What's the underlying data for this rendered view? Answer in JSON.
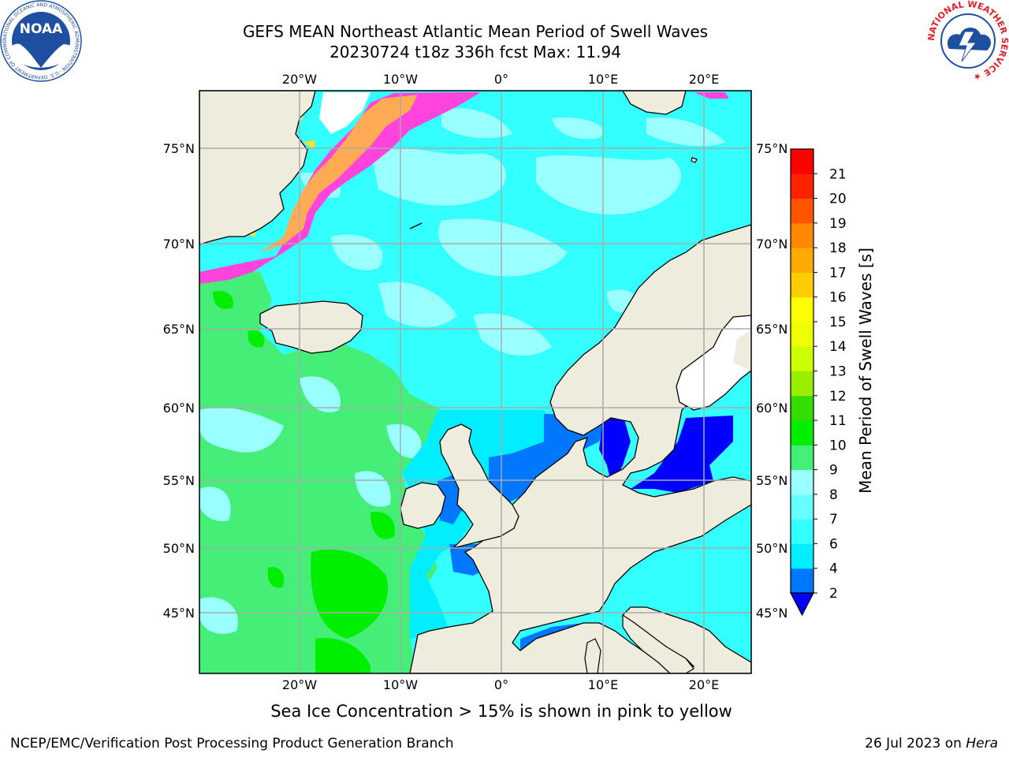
{
  "header": {
    "title_line1": "GEFS MEAN Northeast Atlantic Mean Period of Swell Waves",
    "title_line2": "20230724 t18z 336h fcst   Max: 11.94"
  },
  "map": {
    "lon_ticks": [
      "20°W",
      "10°W",
      "0°",
      "10°E",
      "20°E"
    ],
    "lat_ticks": [
      "75°N",
      "70°N",
      "65°N",
      "60°N",
      "55°N",
      "50°N",
      "45°N"
    ],
    "colors": {
      "land": "#eeecdc",
      "ocean_light_cyan": "#99ffff",
      "ocean_cyan": "#33ffff",
      "ocean_aqua": "#00eeff",
      "ocean_blue": "#0077ff",
      "ocean_deep_blue": "#0000ff",
      "ocean_green": "#44ee77",
      "ocean_bright_green": "#00ee00",
      "ice_pink": "#ff44dd",
      "ice_orange": "#ffaa55",
      "ice_yellow": "#ffdd33",
      "grid": "#aaaaaa",
      "coast": "#000000"
    }
  },
  "colorbar": {
    "label": "Mean Period of Swell Waves [s]",
    "ticks": [
      "2",
      "4",
      "6",
      "7",
      "8",
      "9",
      "10",
      "11",
      "12",
      "13",
      "14",
      "15",
      "16",
      "17",
      "18",
      "19",
      "20",
      "21"
    ],
    "colors": [
      "#0077ff",
      "#00eeff",
      "#33ffff",
      "#66ffff",
      "#99ffff",
      "#44ee77",
      "#00ee00",
      "#33dd00",
      "#99ee00",
      "#ccff00",
      "#eeff00",
      "#ffff00",
      "#ffcc00",
      "#ffaa00",
      "#ff8800",
      "#ff5500",
      "#ff2200",
      "#ff0000"
    ],
    "extend_color": "#0000ff"
  },
  "caption": "Sea Ice Concentration > 15% is shown in pink to yellow",
  "footer": {
    "left": "NCEP/EMC/Verification Post Processing Product Generation Branch",
    "right_prefix": "26 Jul 2023 on ",
    "right_host": "Hera"
  },
  "logos": {
    "noaa_text": "NOAA",
    "noaa_ring": "NATIONAL OCEANIC AND ATMOSPHERIC ADMINISTRATION · U.S. DEPARTMENT OF COMMERCE ·",
    "nws_ring": "NATIONAL WEATHER SERVICE ★"
  }
}
